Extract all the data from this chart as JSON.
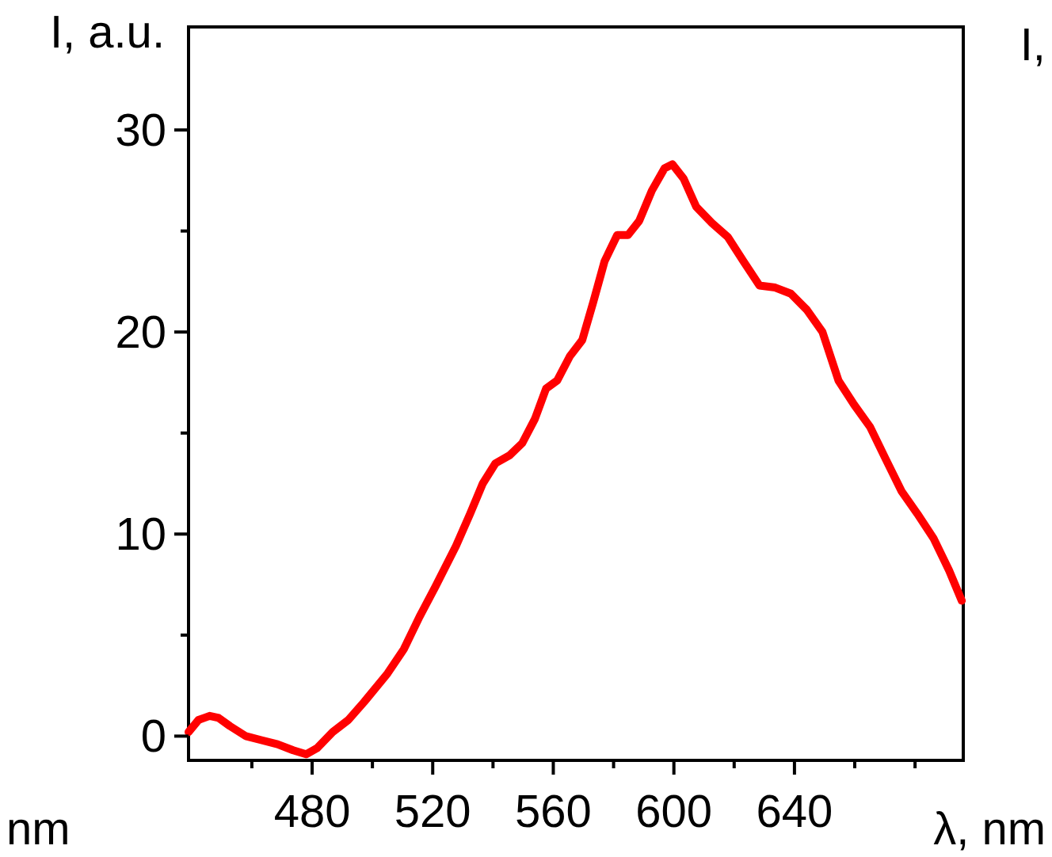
{
  "chart_data": {
    "type": "line",
    "xlabel": "λ, nm",
    "ylabel": "I, a.u.",
    "annotations": [
      "I,",
      "nm"
    ],
    "xlim": [
      439,
      696
    ],
    "ylim": [
      -1.2,
      35.1
    ],
    "xticks": [
      {
        "value": 460,
        "label": null
      },
      480,
      {
        "value": 500,
        "label": null
      },
      520,
      {
        "value": 540,
        "label": null
      },
      560,
      {
        "value": 580,
        "label": null
      },
      600,
      {
        "value": 620,
        "label": null
      },
      640,
      {
        "value": 660,
        "label": null
      },
      {
        "value": 680,
        "label": null
      }
    ],
    "yticks": [
      0,
      {
        "value": 5,
        "label": null
      },
      10,
      {
        "value": 15,
        "label": null
      },
      20,
      {
        "value": 25,
        "label": null
      },
      30
    ],
    "grid": false,
    "marker": "none",
    "line_style": "solid",
    "series": [
      {
        "color": "#ff0000",
        "x": [
          439,
          442.3,
          446,
          449,
          452.7,
          458,
          463.2,
          468.5,
          473.7,
          478,
          481.6,
          486.8,
          492,
          497.3,
          505,
          510.4,
          515.6,
          520.9,
          527.7,
          532.4,
          536.6,
          540.8,
          545.5,
          549.7,
          553.9,
          557.6,
          561.3,
          565.5,
          569.6,
          573.3,
          577,
          581.2,
          584.8,
          588.5,
          592.7,
          596.9,
          599.5,
          603.2,
          607.4,
          612.6,
          617.9,
          623.1,
          628.4,
          633.6,
          638.8,
          644.1,
          649.3,
          654.6,
          659.8,
          665.1,
          670.3,
          675.6,
          680.8,
          686.1,
          691.3,
          695.5
        ],
        "values": [
          0.2,
          0.8,
          1.0,
          0.9,
          0.5,
          0,
          -0.2,
          -0.4,
          -0.7,
          -0.9,
          -0.6,
          0.2,
          0.8,
          1.7,
          3.1,
          4.3,
          5.9,
          7.4,
          9.4,
          11.0,
          12.5,
          13.5,
          13.9,
          14.5,
          15.7,
          17.2,
          17.6,
          18.8,
          19.6,
          21.5,
          23.5,
          24.8,
          24.8,
          25.5,
          27,
          28.1,
          28.3,
          27.6,
          26.2,
          25.4,
          24.7,
          23.5,
          22.3,
          22.2,
          21.9,
          21.1,
          20,
          17.6,
          16.4,
          15.3,
          13.7,
          12.1,
          11,
          9.8,
          8.2,
          6.7
        ]
      }
    ]
  }
}
